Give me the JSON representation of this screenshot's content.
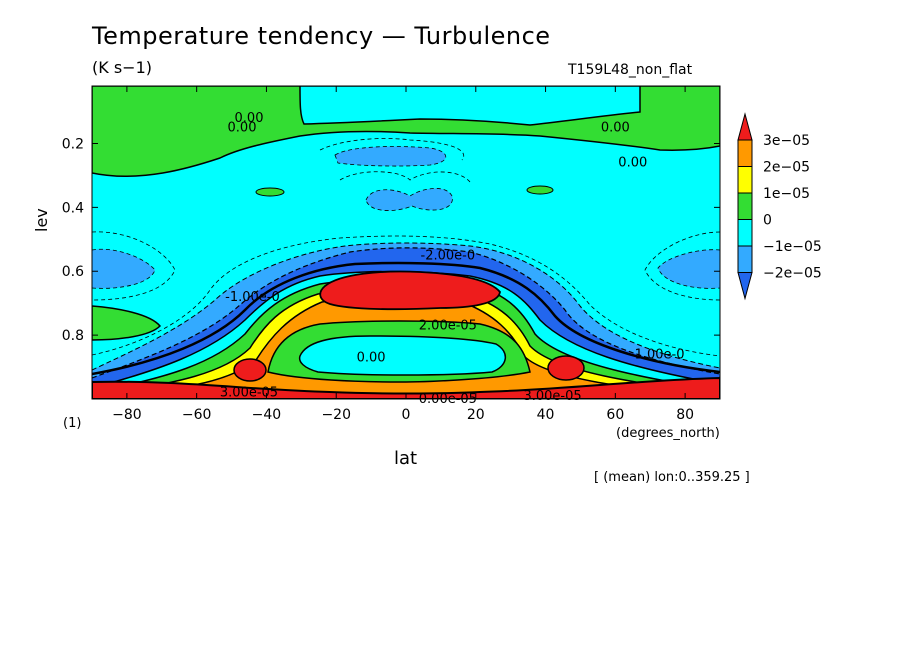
{
  "chart_data": {
    "type": "contour",
    "title": "Temperature tendency — Turbulence",
    "units": "(K s−1)",
    "run_id": "T159L48_non_flat",
    "xlabel": "lat",
    "x_units": "(degrees_north)",
    "ylabel": "lev",
    "y_units": "(1)",
    "averaging_note": "[ (mean) lon:0..359.25 ]",
    "xlim": [
      -90,
      90
    ],
    "ylim": [
      1.0,
      0.02
    ],
    "x_ticks": [
      -80,
      -60,
      -40,
      -20,
      0,
      20,
      40,
      60,
      80
    ],
    "y_ticks": [
      0.2,
      0.4,
      0.6,
      0.8
    ],
    "colorbar": {
      "labels": [
        "3e−05",
        "2e−05",
        "1e−05",
        "0",
        "−1e−05",
        "−2e−05"
      ],
      "bins": [
        {
          "range": "> 3e-05",
          "color": "#ee1c1c"
        },
        {
          "range": "2e-05 – 3e-05",
          "color": "#ff9900"
        },
        {
          "range": "1e-05 – 2e-05",
          "color": "#ffff00"
        },
        {
          "range": "0 – 1e-05",
          "color": "#33dd33"
        },
        {
          "range": "-1e-05 – 0",
          "color": "#00ffff"
        },
        {
          "range": "-2e-05 – -1e-05",
          "color": "#33aaff"
        },
        {
          "range": "< -2e-05",
          "color": "#2266ee"
        }
      ]
    },
    "contour_labels": [
      {
        "text": "0.00",
        "lat": -45,
        "lev": 0.12
      },
      {
        "text": "0.00",
        "lat": -47,
        "lev": 0.15
      },
      {
        "text": "0.00",
        "lat": 60,
        "lev": 0.15
      },
      {
        "text": "0.00",
        "lat": 65,
        "lev": 0.26
      },
      {
        "text": "-2.00e-0",
        "lat": 12,
        "lev": 0.55
      },
      {
        "text": "-1.00e-0",
        "lat": -44,
        "lev": 0.68
      },
      {
        "text": "2.00e-05",
        "lat": 12,
        "lev": 0.77
      },
      {
        "text": "0.00",
        "lat": -10,
        "lev": 0.87
      },
      {
        "text": "-1.00e-0",
        "lat": 72,
        "lev": 0.86
      },
      {
        "text": "3.00e-05",
        "lat": 42,
        "lev": 0.99
      },
      {
        "text": "3.00e-05",
        "lat": -45,
        "lev": 0.98
      },
      {
        "text": "0.00e-05",
        "lat": 12,
        "lev": 1.0
      }
    ]
  }
}
